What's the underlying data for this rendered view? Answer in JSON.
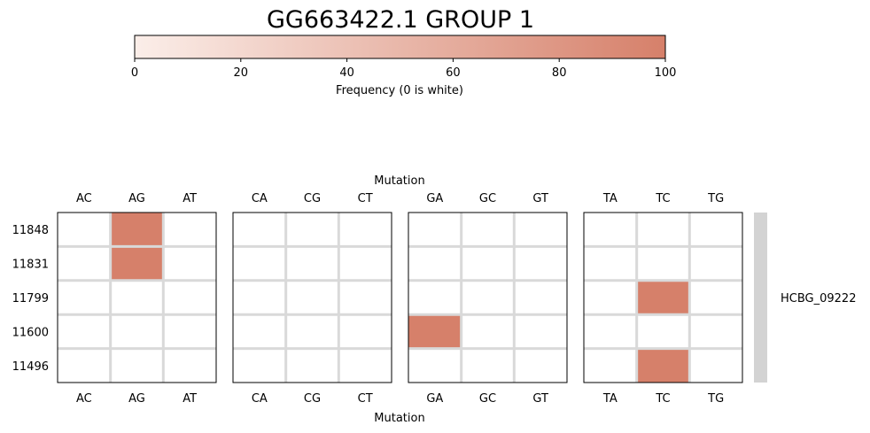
{
  "chart_data": {
    "type": "heatmap",
    "title": "GG663422.1 GROUP 1",
    "colorbar": {
      "label": "Frequency (0 is white)",
      "min": 0,
      "max": 100,
      "ticks": [
        0,
        20,
        40,
        60,
        80,
        100
      ],
      "color_low": "#fbeee9",
      "color_high": "#d6806a"
    },
    "x_axis_label_top": "Mutation",
    "x_axis_label_bottom": "Mutation",
    "rows": [
      "11848",
      "11831",
      "11799",
      "11600",
      "11496"
    ],
    "groups": [
      {
        "columns": [
          "AC",
          "AG",
          "AT"
        ],
        "values": [
          [
            0,
            100,
            0
          ],
          [
            0,
            100,
            0
          ],
          [
            0,
            0,
            0
          ],
          [
            0,
            0,
            0
          ],
          [
            0,
            0,
            0
          ]
        ]
      },
      {
        "columns": [
          "CA",
          "CG",
          "CT"
        ],
        "values": [
          [
            0,
            0,
            0
          ],
          [
            0,
            0,
            0
          ],
          [
            0,
            0,
            0
          ],
          [
            0,
            0,
            0
          ],
          [
            0,
            0,
            0
          ]
        ]
      },
      {
        "columns": [
          "GA",
          "GC",
          "GT"
        ],
        "values": [
          [
            0,
            0,
            0
          ],
          [
            0,
            0,
            0
          ],
          [
            0,
            0,
            0
          ],
          [
            100,
            0,
            0
          ],
          [
            0,
            0,
            0
          ]
        ]
      },
      {
        "columns": [
          "TA",
          "TC",
          "TG"
        ],
        "values": [
          [
            0,
            0,
            0
          ],
          [
            0,
            0,
            0
          ],
          [
            0,
            100,
            0
          ],
          [
            0,
            0,
            0
          ],
          [
            0,
            100,
            0
          ]
        ]
      }
    ],
    "row_annotation": {
      "label": "HCBG_09222",
      "color": "#d3d3d3"
    },
    "grid_color": "#d9d9d9",
    "legend": "top"
  }
}
